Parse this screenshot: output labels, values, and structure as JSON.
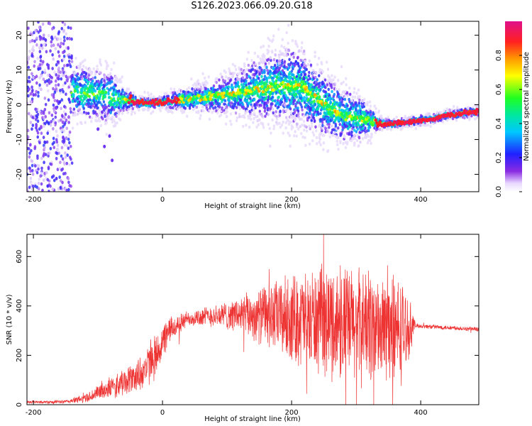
{
  "title": "S126.2023.066.09.20.G18",
  "colors": {
    "snr_line": "#ee3333",
    "spectrogram_strong": "#e8203c",
    "spectrogram_mid": "#30e0c8",
    "spectrogram_weak": "#6a1ff0",
    "spectrogram_faint": "#c8b0f0"
  },
  "chart_data": [
    {
      "type": "heatmap",
      "title": "",
      "xlabel": "Height of straight line (km)",
      "ylabel": "Frequency (Hz)",
      "xlim": [
        -210,
        490
      ],
      "ylim": [
        -25,
        24
      ],
      "xticks": [
        -200,
        0,
        200,
        400
      ],
      "yticks": [
        -20,
        -10,
        0,
        10,
        20
      ],
      "colorbar": {
        "label": "Normalized spectral amplitude",
        "range": [
          0,
          1
        ],
        "ticks": [
          "0.0",
          "0.2",
          "0.4",
          "0.6",
          "0.8"
        ],
        "colormap": "rainbow (purple-blue-cyan-green-yellow-red-magenta)"
      },
      "ridge": {
        "x": [
          -135,
          -100,
          -75,
          -60,
          -40,
          -20,
          0,
          20,
          50,
          80,
          100,
          130,
          160,
          180,
          200,
          215,
          230,
          250,
          270,
          290,
          310,
          330,
          345,
          360,
          380,
          400,
          420,
          440,
          460,
          490
        ],
        "y": [
          4,
          3,
          2,
          1.5,
          0.8,
          0.5,
          0.8,
          1.2,
          1.8,
          2.5,
          3,
          4,
          5,
          5.5,
          5.5,
          5,
          3,
          0,
          -2,
          -3.5,
          -4,
          -5,
          -5.5,
          -5.5,
          -5,
          -4.5,
          -4,
          -3,
          -2.5,
          -2
        ],
        "spread_hz": [
          4,
          4,
          4,
          2,
          1,
          1,
          1,
          1.5,
          2,
          2.5,
          3,
          4,
          5,
          5.5,
          6,
          6,
          5.5,
          5,
          4.5,
          4,
          3.5,
          1.5,
          0.8,
          0.8,
          0.8,
          0.8,
          0.8,
          0.8,
          0.8,
          0.8
        ]
      },
      "noise_region_x": [
        -210,
        -140
      ]
    },
    {
      "type": "line",
      "title": "",
      "xlabel": "Height of straight line (km)",
      "ylabel": "SNR (10 * v/v)",
      "xlim": [
        -210,
        490
      ],
      "ylim": [
        0,
        690
      ],
      "xticks": [
        -200,
        0,
        200,
        400
      ],
      "yticks": [
        0,
        200,
        400,
        600
      ],
      "envelope": {
        "x": [
          -210,
          -150,
          -120,
          -90,
          -60,
          -30,
          -10,
          10,
          40,
          80,
          120,
          160,
          200,
          240,
          280,
          320,
          350,
          370,
          385,
          392,
          420,
          460,
          490
        ],
        "mean": [
          10,
          12,
          25,
          60,
          90,
          130,
          200,
          300,
          350,
          360,
          365,
          360,
          350,
          340,
          330,
          320,
          310,
          300,
          320,
          320,
          315,
          310,
          305
        ],
        "amp": [
          6,
          8,
          20,
          40,
          60,
          80,
          100,
          60,
          35,
          50,
          80,
          140,
          200,
          240,
          260,
          260,
          240,
          240,
          100,
          10,
          10,
          10,
          10
        ]
      }
    }
  ]
}
